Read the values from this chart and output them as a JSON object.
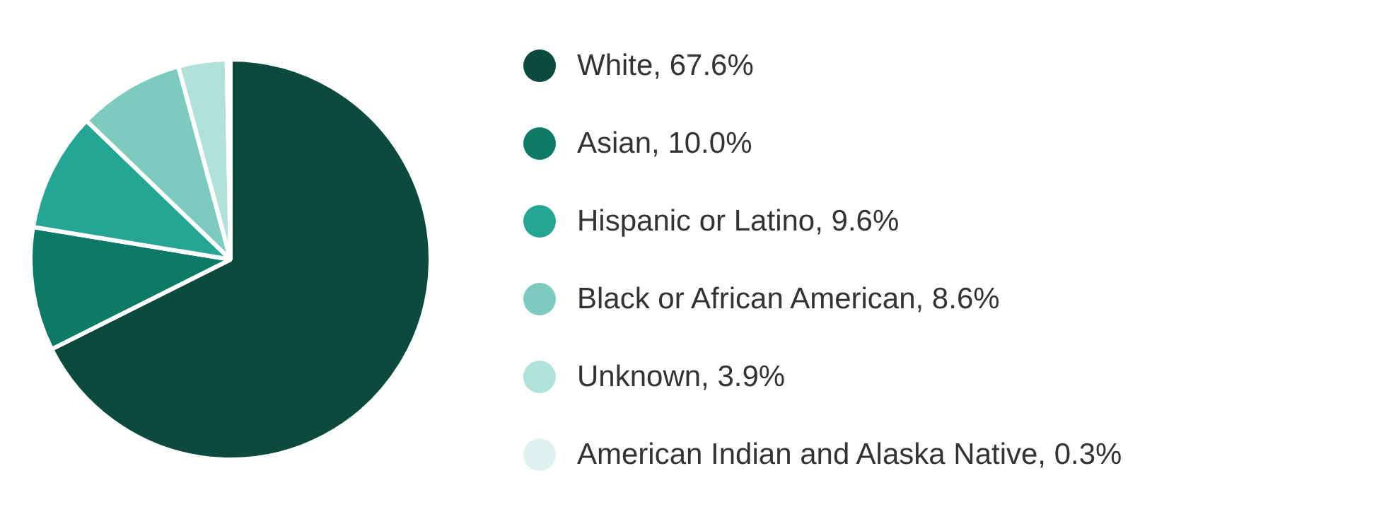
{
  "chart_data": {
    "type": "pie",
    "categories": [
      "White",
      "Asian",
      "Hispanic or Latino",
      "Black or African American",
      "Unknown",
      "American Indian and Alaska Native"
    ],
    "values": [
      67.6,
      10.0,
      9.6,
      8.6,
      3.9,
      0.3
    ],
    "value_labels": [
      "67.6%",
      "10.0%",
      "9.6%",
      "8.6%",
      "3.9%",
      "0.3%"
    ],
    "colors": [
      "#0b4a3c",
      "#0d7a68",
      "#27a594",
      "#7dcbbf",
      "#b2e0da",
      "#dff1ef"
    ],
    "legend": "right"
  }
}
